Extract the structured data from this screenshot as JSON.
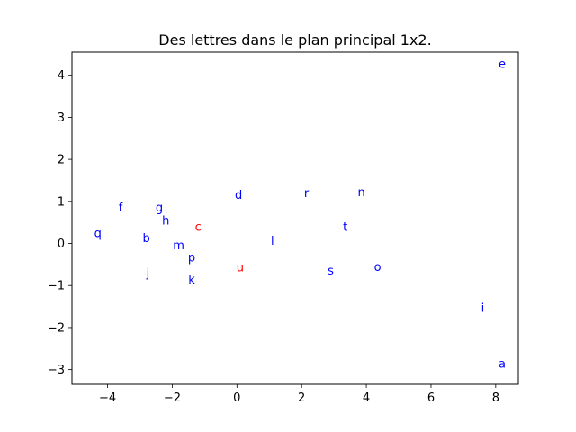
{
  "chart_data": {
    "type": "scatter",
    "title": "Des lettres dans le plan principal 1x2.",
    "xlabel": "",
    "ylabel": "",
    "xlim": [
      -5.1,
      8.7
    ],
    "ylim": [
      -3.35,
      4.55
    ],
    "grid": false,
    "x_ticks": [
      -4,
      -2,
      0,
      2,
      4,
      6,
      8
    ],
    "y_ticks": [
      -3,
      -2,
      -1,
      0,
      1,
      2,
      3,
      4
    ],
    "x_tick_labels": [
      "−4",
      "−2",
      "0",
      "2",
      "4",
      "6",
      "8"
    ],
    "y_tick_labels": [
      "−3",
      "−2",
      "−1",
      "0",
      "1",
      "2",
      "3",
      "4"
    ],
    "colors": {
      "default": "#0000ff",
      "highlight": "#ff0000"
    },
    "points": [
      {
        "label": "e",
        "x": 8.2,
        "y": 4.25,
        "color": "#0000ff"
      },
      {
        "label": "r",
        "x": 2.15,
        "y": 1.18,
        "color": "#0000ff"
      },
      {
        "label": "n",
        "x": 3.85,
        "y": 1.2,
        "color": "#0000ff"
      },
      {
        "label": "d",
        "x": 0.05,
        "y": 1.13,
        "color": "#0000ff"
      },
      {
        "label": "f",
        "x": -3.6,
        "y": 0.84,
        "color": "#0000ff"
      },
      {
        "label": "g",
        "x": -2.4,
        "y": 0.84,
        "color": "#0000ff"
      },
      {
        "label": "h",
        "x": -2.2,
        "y": 0.52,
        "color": "#0000ff"
      },
      {
        "label": "c",
        "x": -1.2,
        "y": 0.37,
        "color": "#ff0000"
      },
      {
        "label": "t",
        "x": 3.35,
        "y": 0.37,
        "color": "#0000ff"
      },
      {
        "label": "q",
        "x": -4.3,
        "y": 0.23,
        "color": "#0000ff"
      },
      {
        "label": "b",
        "x": -2.8,
        "y": 0.11,
        "color": "#0000ff"
      },
      {
        "label": "l",
        "x": 1.1,
        "y": 0.04,
        "color": "#0000ff"
      },
      {
        "label": "m",
        "x": -1.8,
        "y": -0.06,
        "color": "#0000ff"
      },
      {
        "label": "p",
        "x": -1.4,
        "y": -0.35,
        "color": "#0000ff"
      },
      {
        "label": "u",
        "x": 0.1,
        "y": -0.59,
        "color": "#ff0000"
      },
      {
        "label": "o",
        "x": 4.35,
        "y": -0.58,
        "color": "#0000ff"
      },
      {
        "label": "s",
        "x": 2.9,
        "y": -0.66,
        "color": "#0000ff"
      },
      {
        "label": "j",
        "x": -2.75,
        "y": -0.72,
        "color": "#0000ff"
      },
      {
        "label": "k",
        "x": -1.4,
        "y": -0.88,
        "color": "#0000ff"
      },
      {
        "label": "i",
        "x": 7.6,
        "y": -1.55,
        "color": "#0000ff"
      },
      {
        "label": "a",
        "x": 8.2,
        "y": -2.88,
        "color": "#0000ff"
      }
    ]
  }
}
